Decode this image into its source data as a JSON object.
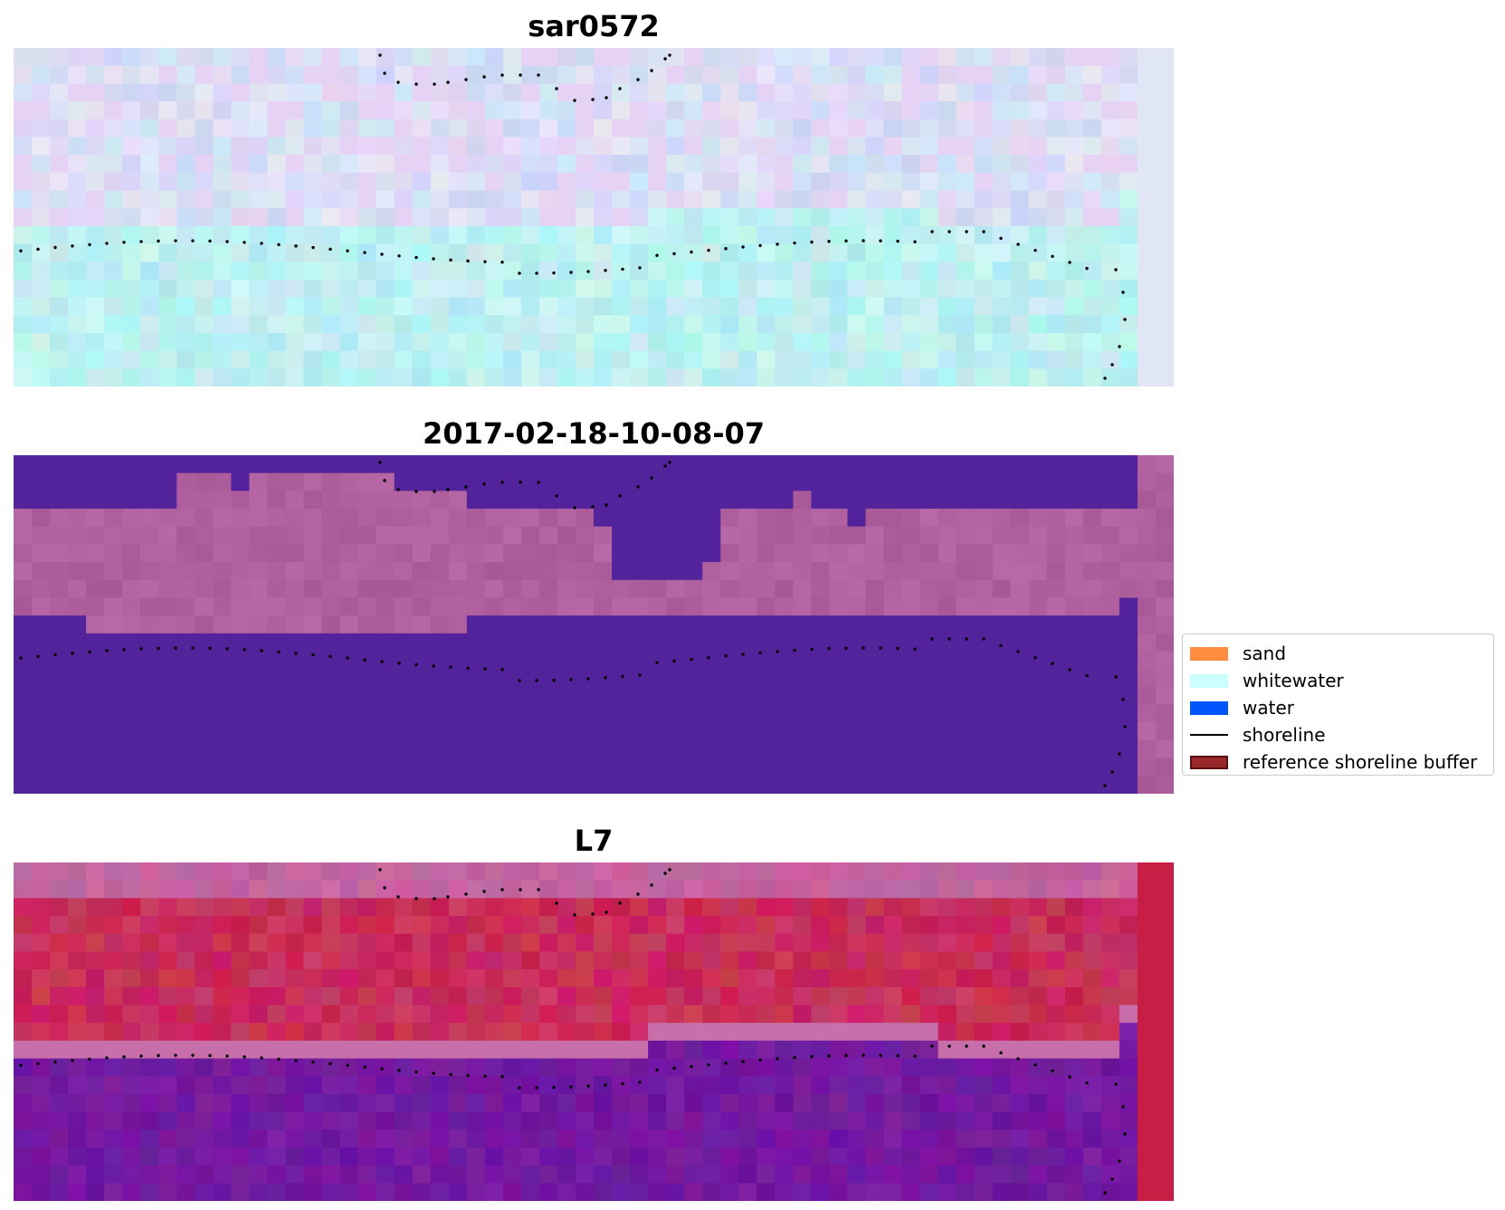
{
  "panels": [
    {
      "title": "sar0572",
      "kind": "rgb"
    },
    {
      "title": "2017-02-18-10-08-07",
      "kind": "classified"
    },
    {
      "title": "L7",
      "kind": "index"
    }
  ],
  "legend": [
    {
      "label": "sand",
      "color": "#ff8c3f",
      "type": "patch"
    },
    {
      "label": "whitewater",
      "color": "#ccffff",
      "type": "patch"
    },
    {
      "label": "water",
      "color": "#0055ff",
      "type": "patch"
    },
    {
      "label": "shoreline",
      "color": "#000000",
      "type": "line"
    },
    {
      "label": "reference shoreline buffer",
      "color": "#99282c",
      "type": "patch",
      "edge": "#5a1010"
    }
  ],
  "colors": {
    "classified_water": "#53239b",
    "classified_land": "#b05f9f",
    "dots": "#000000"
  }
}
